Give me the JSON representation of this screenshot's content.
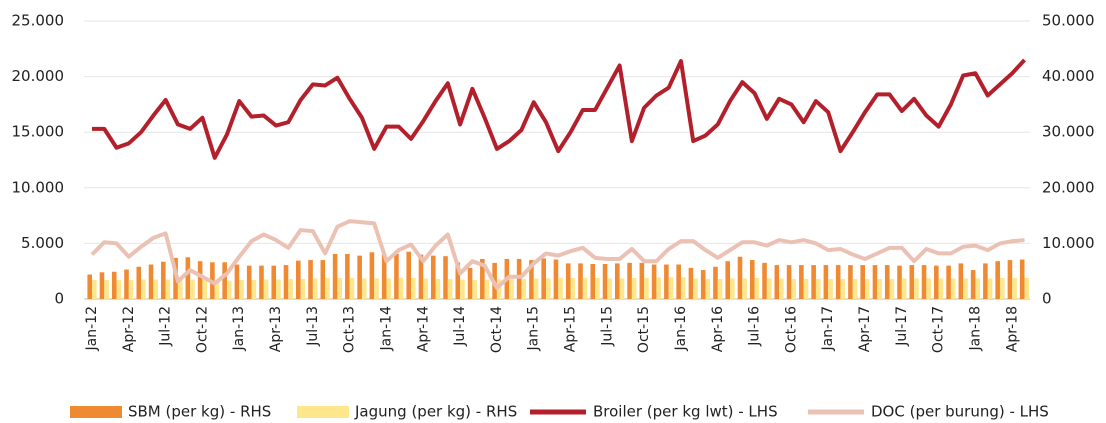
{
  "chart_data": {
    "type": "combo",
    "categories": [
      "Jan-12",
      null,
      null,
      "Apr-12",
      null,
      null,
      "Jul-12",
      null,
      null,
      "Oct-12",
      null,
      null,
      "Jan-13",
      null,
      null,
      "Apr-13",
      null,
      null,
      "Jul-13",
      null,
      null,
      "Oct-13",
      null,
      null,
      "Jan-14",
      null,
      null,
      "Apr-14",
      null,
      null,
      "Jul-14",
      null,
      null,
      "Oct-14",
      null,
      null,
      "Jan-15",
      null,
      null,
      "Apr-15",
      null,
      null,
      "Jul-15",
      null,
      null,
      "Oct-15",
      null,
      null,
      "Jan-16",
      null,
      null,
      "Apr-16",
      null,
      null,
      "Jul-16",
      null,
      null,
      "Oct-16",
      null,
      null,
      "Jan-17",
      null,
      null,
      "Apr-17",
      null,
      null,
      "Jul-17",
      null,
      null,
      "Oct-17",
      null,
      null,
      "Jan-18",
      null,
      null,
      "Apr-18",
      null
    ],
    "series": [
      {
        "name": "SBM (per kg) - RHS",
        "type": "bar",
        "axis": "y2",
        "color": "#ef8a33",
        "values": [
          4400,
          4800,
          4900,
          5300,
          5800,
          6200,
          6700,
          7400,
          7500,
          6800,
          6600,
          6600,
          6200,
          6000,
          6000,
          6000,
          6100,
          6900,
          7000,
          7000,
          8100,
          8100,
          7800,
          8400,
          8000,
          8100,
          8500,
          8000,
          7800,
          7700,
          6600,
          5600,
          7200,
          6500,
          7200,
          7200,
          7000,
          7300,
          7100,
          6400,
          6400,
          6300,
          6300,
          6400,
          6500,
          6500,
          6200,
          6200,
          6200,
          5600,
          5200,
          5800,
          6800,
          7600,
          7000,
          6500,
          6100,
          6100,
          6100,
          6100,
          6100,
          6100,
          6100,
          6100,
          6100,
          6100,
          6000,
          6100,
          6100,
          6000,
          6000,
          6400,
          5200,
          6400,
          6800,
          7000,
          7100
        ]
      },
      {
        "name": "Jagung (per kg) - RHS",
        "type": "bar",
        "axis": "y2",
        "color": "#fde68c",
        "values": [
          3400,
          3400,
          3400,
          3400,
          3500,
          3500,
          3500,
          3500,
          3500,
          3400,
          3300,
          3300,
          3400,
          3400,
          3500,
          3500,
          3600,
          3600,
          3700,
          3800,
          3800,
          3800,
          3700,
          3700,
          3700,
          3800,
          3800,
          3700,
          3600,
          3600,
          3500,
          3400,
          3500,
          3500,
          3600,
          3600,
          3700,
          3700,
          3800,
          3800,
          3800,
          3800,
          3700,
          3700,
          3800,
          3800,
          3900,
          3900,
          3900,
          3700,
          3600,
          3600,
          3700,
          3700,
          3800,
          3700,
          3700,
          3600,
          3600,
          3600,
          3600,
          3600,
          3600,
          3600,
          3600,
          3600,
          3700,
          3700,
          3700,
          3700,
          3700,
          3700,
          3700,
          3700,
          3800,
          3800,
          3800
        ]
      },
      {
        "name": "Broiler (per kg lwt) - LHS",
        "type": "line",
        "axis": "y",
        "color": "#b3202c",
        "values": [
          15300,
          15300,
          13600,
          14000,
          15000,
          16500,
          17900,
          15700,
          15300,
          16300,
          12700,
          14800,
          17800,
          16400,
          16500,
          15600,
          15900,
          17900,
          19300,
          19200,
          19900,
          18000,
          16300,
          13500,
          15500,
          15500,
          14400,
          16000,
          17800,
          19400,
          15700,
          18900,
          16300,
          13500,
          14200,
          15200,
          17700,
          15900,
          13300,
          15000,
          17000,
          17000,
          19000,
          21000,
          14200,
          17200,
          18300,
          19000,
          21400,
          14200,
          14700,
          15700,
          17800,
          19500,
          18500,
          16200,
          18000,
          17500,
          15900,
          17800,
          16800,
          13300,
          15000,
          16800,
          18400,
          18400,
          16900,
          18000,
          16500,
          15500,
          17500,
          20100,
          20300,
          18300,
          19300,
          20300,
          21500
        ]
      },
      {
        "name": "DOC (per burung) - LHS",
        "type": "line",
        "axis": "y",
        "color": "#ebc1b4",
        "values": [
          4000,
          5100,
          5000,
          3800,
          4700,
          5500,
          5900,
          1600,
          2600,
          2000,
          1400,
          2300,
          3800,
          5200,
          5800,
          5300,
          4600,
          6200,
          6100,
          4100,
          6500,
          7000,
          6900,
          6800,
          3400,
          4400,
          4900,
          3400,
          4800,
          5800,
          2300,
          3400,
          3000,
          1000,
          2000,
          2000,
          3200,
          4100,
          3900,
          4300,
          4600,
          3700,
          3600,
          3600,
          4500,
          3400,
          3400,
          4500,
          5200,
          5200,
          4400,
          3700,
          4400,
          5100,
          5100,
          4800,
          5300,
          5100,
          5300,
          5000,
          4400,
          4500,
          4000,
          3600,
          4100,
          4600,
          4600,
          3400,
          4500,
          4100,
          4100,
          4700,
          4800,
          4400,
          5000,
          5200,
          5300
        ]
      }
    ],
    "ylim": [
      0,
      25000
    ],
    "yticks": [
      0,
      {
        "value": 5000,
        "label": "5.000"
      },
      {
        "value": 10000,
        "label": "10.000"
      },
      {
        "value": 15000,
        "label": "15.000"
      },
      {
        "value": 20000,
        "label": "20.000"
      },
      {
        "value": 25000,
        "label": "25.000"
      }
    ],
    "y2lim": [
      0,
      50000
    ],
    "y2ticks": [
      0,
      {
        "value": 10000,
        "label": "10.000"
      },
      {
        "value": 20000,
        "label": "20.000"
      },
      {
        "value": 30000,
        "label": "30.000"
      },
      {
        "value": 40000,
        "label": "40.000"
      },
      {
        "value": 50000,
        "label": "50.000"
      }
    ],
    "grid": true,
    "legend": "bottom"
  }
}
